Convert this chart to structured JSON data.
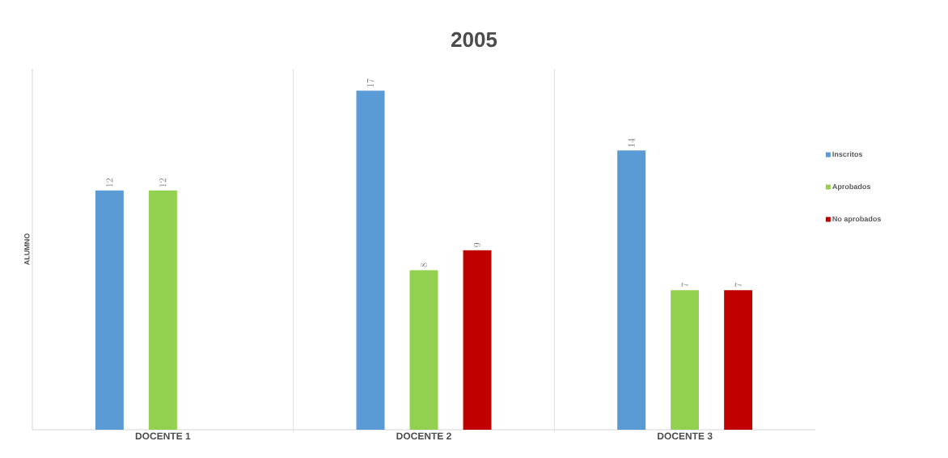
{
  "chart_data": {
    "type": "bar",
    "title": "2005",
    "ylabel": "ALUMNO",
    "categories": [
      "DOCENTE 1",
      "DOCENTE 2",
      "DOCENTE 3"
    ],
    "series": [
      {
        "name": "Inscritos",
        "color": "#5b9bd5",
        "values": [
          12,
          17,
          14
        ]
      },
      {
        "name": "Aprobados",
        "color": "#92d050",
        "values": [
          12,
          8,
          7
        ]
      },
      {
        "name": "No aprobados",
        "color": "#c00000",
        "values": [
          null,
          9,
          7
        ]
      }
    ],
    "data_labels": true,
    "grid": "x",
    "legend": "right"
  }
}
